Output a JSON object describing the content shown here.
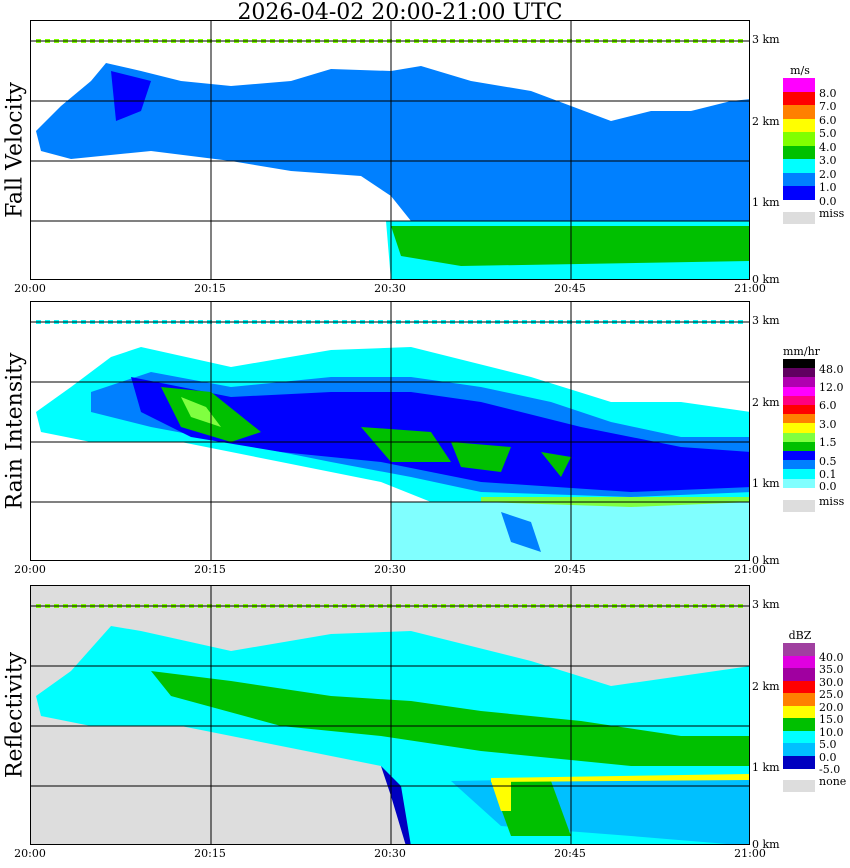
{
  "title": "2026-04-02   20:00-21:00 UTC",
  "chart_data": [
    {
      "type": "heatmap",
      "title": "Fall Velocity",
      "unit": "m/s",
      "x_ticks": [
        "20:00",
        "20:15",
        "20:30",
        "20:45",
        "21:00"
      ],
      "y_ticks": [
        "3 km",
        "2 km",
        "1 km",
        "0 km"
      ],
      "legend": {
        "colors": [
          "#ff00ff",
          "#ff0000",
          "#ff8000",
          "#ffff00",
          "#80ff00",
          "#00c000",
          "#00ffff",
          "#0080ff",
          "#0000ff"
        ],
        "labels": [
          "8.0",
          "7.0",
          "6.0",
          "5.0",
          "4.0",
          "3.0",
          "2.0",
          "1.0",
          "0.0"
        ],
        "missing": "miss",
        "missing_color": "#dddddd"
      }
    },
    {
      "type": "heatmap",
      "title": "Rain Intensity",
      "unit": "mm/hr",
      "x_ticks": [
        "20:00",
        "20:15",
        "20:30",
        "20:45",
        "21:00"
      ],
      "y_ticks": [
        "3 km",
        "2 km",
        "1 km",
        "0 km"
      ],
      "legend": {
        "colors": [
          "#000000",
          "#600060",
          "#b000b0",
          "#ff00ff",
          "#ff0080",
          "#ff0000",
          "#ff8000",
          "#ffff00",
          "#80ff40",
          "#00c000",
          "#0000ff",
          "#0080ff",
          "#00ffff",
          "#80ffff"
        ],
        "labels": [
          "48.0",
          "12.0",
          "6.0",
          "3.0",
          "1.5",
          "0.5",
          "0.1",
          "0.0"
        ],
        "missing": "miss",
        "missing_color": "#dddddd"
      }
    },
    {
      "type": "heatmap",
      "title": "Reflectivity",
      "unit": "dBZ",
      "x_ticks": [
        "20:00",
        "20:15",
        "20:30",
        "20:45",
        "21:00"
      ],
      "y_ticks": [
        "3 km",
        "2 km",
        "1 km",
        "0 km"
      ],
      "legend": {
        "colors": [
          "#a040a0",
          "#e000e0",
          "#a000a0",
          "#ff0000",
          "#ff8000",
          "#ffff00",
          "#00c000",
          "#00ffff",
          "#00c0ff",
          "#0000c0"
        ],
        "labels": [
          "40.0",
          "35.0",
          "30.0",
          "25.0",
          "20.0",
          "15.0",
          "10.0",
          "5.0",
          "0.0",
          "-5.0"
        ],
        "missing": "none",
        "missing_color": "#dddddd"
      }
    }
  ]
}
